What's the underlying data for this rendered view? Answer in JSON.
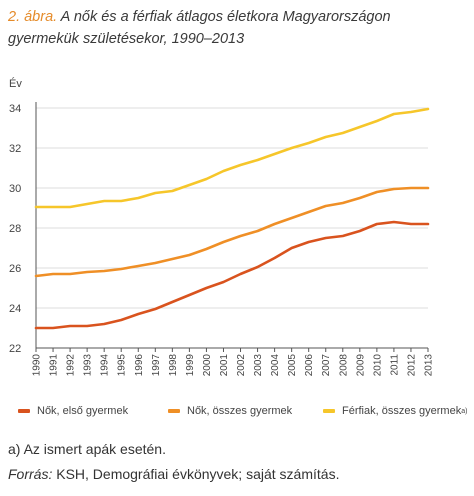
{
  "title": {
    "number": "2. ábra.",
    "text": "A nők és a férfiak átlagos életkora Magyarországon gyermekük születésekor, 1990–2013"
  },
  "colors": {
    "series1": "#d9531e",
    "series2": "#ef8f26",
    "series3": "#f6c62a",
    "axis": "#555555",
    "grid": "#dddddd",
    "tick_text": "#444444",
    "title_number": "#e58b2a"
  },
  "chart_data": {
    "type": "line",
    "ylabel": "Év",
    "ylim": [
      22,
      34
    ],
    "yticks": [
      22,
      24,
      26,
      28,
      30,
      32,
      34
    ],
    "x": [
      "1990",
      "1991",
      "1992",
      "1993",
      "1994",
      "1995",
      "1996",
      "1997",
      "1998",
      "1999",
      "2000",
      "2001",
      "2002",
      "2003",
      "2004",
      "2005",
      "2006",
      "2007",
      "2008",
      "2009",
      "2010",
      "2011",
      "2012",
      "2013"
    ],
    "grid": "horizontal",
    "legend_position": "bottom",
    "series": [
      {
        "name": "Nők, első gyermek",
        "values": [
          23.0,
          23.0,
          23.1,
          23.1,
          23.2,
          23.4,
          23.7,
          23.95,
          24.3,
          24.65,
          25.0,
          25.3,
          25.7,
          26.05,
          26.5,
          27.0,
          27.3,
          27.5,
          27.6,
          27.85,
          28.2,
          28.3,
          28.2,
          28.2
        ]
      },
      {
        "name": "Nők, összes gyermek",
        "values": [
          25.6,
          25.7,
          25.7,
          25.8,
          25.85,
          25.95,
          26.1,
          26.25,
          26.45,
          26.65,
          26.95,
          27.3,
          27.6,
          27.85,
          28.2,
          28.5,
          28.8,
          29.1,
          29.25,
          29.5,
          29.8,
          29.95,
          30.0,
          30.0
        ]
      },
      {
        "name": "Férfiak, összes gyermek",
        "values": [
          29.05,
          29.05,
          29.05,
          29.2,
          29.35,
          29.35,
          29.5,
          29.75,
          29.85,
          30.15,
          30.45,
          30.85,
          31.15,
          31.4,
          31.7,
          32.0,
          32.25,
          32.55,
          32.75,
          33.05,
          33.35,
          33.7,
          33.8,
          33.95
        ]
      }
    ]
  },
  "legend": {
    "items": [
      {
        "label": "Nők, első gyermek"
      },
      {
        "label": "Nők, összes gyermek"
      },
      {
        "label": "Férfiak, összes gyermek",
        "sup": "a)"
      }
    ]
  },
  "footnote": "a) Az ismert apák esetén.",
  "source": {
    "label": "Forrás:",
    "text": " KSH, Demográfiai évkönyvek; saját számítás."
  }
}
